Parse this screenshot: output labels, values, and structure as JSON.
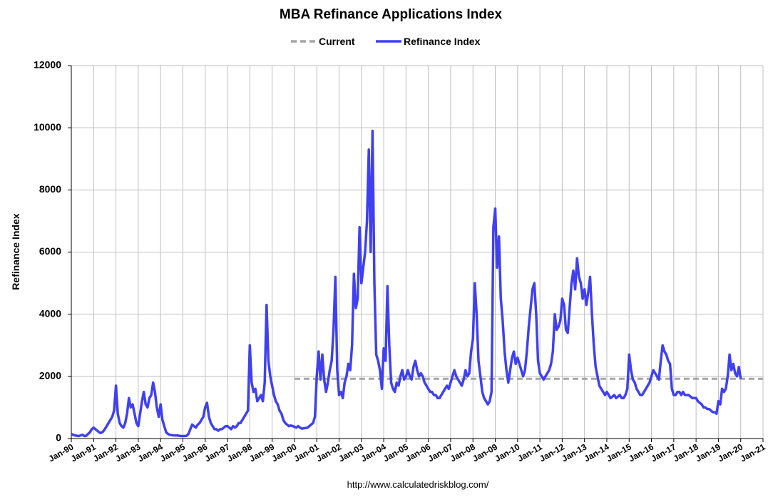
{
  "chart_data": {
    "type": "line",
    "title": "MBA Refinance Applications Index",
    "y_label": "Refinance Index",
    "source": "http://www.calculatedriskblog.com/",
    "legend": "top",
    "grid": true,
    "ylim": [
      0,
      12000
    ],
    "yticks": [
      0,
      2000,
      4000,
      6000,
      8000,
      10000,
      12000
    ],
    "xlim": [
      "1990-01",
      "2021-01"
    ],
    "xticks": [
      {
        "value": "1990-01",
        "label": "Jan-90"
      },
      {
        "value": "1991-01",
        "label": "Jan-91"
      },
      {
        "value": "1992-01",
        "label": "Jan-92"
      },
      {
        "value": "1993-01",
        "label": "Jan-93"
      },
      {
        "value": "1994-01",
        "label": "Jan-94"
      },
      {
        "value": "1995-01",
        "label": "Jan-95"
      },
      {
        "value": "1996-01",
        "label": "Jan-96"
      },
      {
        "value": "1997-01",
        "label": "Jan-97"
      },
      {
        "value": "1998-01",
        "label": "Jan-98"
      },
      {
        "value": "1999-01",
        "label": "Jan-99"
      },
      {
        "value": "2000-01",
        "label": "Jan-00"
      },
      {
        "value": "2001-01",
        "label": "Jan-01"
      },
      {
        "value": "2002-01",
        "label": "Jan-02"
      },
      {
        "value": "2003-01",
        "label": "Jan-03"
      },
      {
        "value": "2004-01",
        "label": "Jan-04"
      },
      {
        "value": "2005-01",
        "label": "Jan-05"
      },
      {
        "value": "2006-01",
        "label": "Jan-06"
      },
      {
        "value": "2007-01",
        "label": "Jan-07"
      },
      {
        "value": "2008-01",
        "label": "Jan-08"
      },
      {
        "value": "2009-01",
        "label": "Jan-09"
      },
      {
        "value": "2010-01",
        "label": "Jan-10"
      },
      {
        "value": "2011-01",
        "label": "Jan-11"
      },
      {
        "value": "2012-01",
        "label": "Jan-12"
      },
      {
        "value": "2013-01",
        "label": "Jan-13"
      },
      {
        "value": "2014-01",
        "label": "Jan-14"
      },
      {
        "value": "2015-01",
        "label": "Jan-15"
      },
      {
        "value": "2016-01",
        "label": "Jan-16"
      },
      {
        "value": "2017-01",
        "label": "Jan-17"
      },
      {
        "value": "2018-01",
        "label": "Jan-18"
      },
      {
        "value": "2019-01",
        "label": "Jan-19"
      },
      {
        "value": "2020-01",
        "label": "Jan-20"
      },
      {
        "value": "2021-01",
        "label": "Jan-21"
      }
    ],
    "series": [
      {
        "name": "Current",
        "color": "#a6a6a6",
        "dashed": true,
        "x": [
          "2000-01",
          "2021-01"
        ],
        "values": [
          1920,
          1920
        ]
      },
      {
        "name": "Refinance Index",
        "color": "#4040f0",
        "dashed": false,
        "x": [
          "1990-01",
          "1990-02",
          "1990-03",
          "1990-04",
          "1990-05",
          "1990-06",
          "1990-07",
          "1990-08",
          "1990-09",
          "1990-10",
          "1990-11",
          "1990-12",
          "1991-01",
          "1991-02",
          "1991-03",
          "1991-04",
          "1991-05",
          "1991-06",
          "1991-07",
          "1991-08",
          "1991-09",
          "1991-10",
          "1991-11",
          "1991-12",
          "1992-01",
          "1992-02",
          "1992-03",
          "1992-04",
          "1992-05",
          "1992-06",
          "1992-07",
          "1992-08",
          "1992-09",
          "1992-10",
          "1992-11",
          "1992-12",
          "1993-01",
          "1993-02",
          "1993-03",
          "1993-04",
          "1993-05",
          "1993-06",
          "1993-07",
          "1993-08",
          "1993-09",
          "1993-10",
          "1993-11",
          "1993-12",
          "1994-01",
          "1994-02",
          "1994-03",
          "1994-04",
          "1994-05",
          "1994-06",
          "1994-07",
          "1994-08",
          "1994-09",
          "1994-10",
          "1994-11",
          "1994-12",
          "1995-01",
          "1995-02",
          "1995-03",
          "1995-04",
          "1995-05",
          "1995-06",
          "1995-07",
          "1995-08",
          "1995-09",
          "1995-10",
          "1995-11",
          "1995-12",
          "1996-01",
          "1996-02",
          "1996-03",
          "1996-04",
          "1996-05",
          "1996-06",
          "1996-07",
          "1996-08",
          "1996-09",
          "1996-10",
          "1996-11",
          "1996-12",
          "1997-01",
          "1997-02",
          "1997-03",
          "1997-04",
          "1997-05",
          "1997-06",
          "1997-07",
          "1997-08",
          "1997-09",
          "1997-10",
          "1997-11",
          "1997-12",
          "1998-01",
          "1998-02",
          "1998-03",
          "1998-04",
          "1998-05",
          "1998-06",
          "1998-07",
          "1998-08",
          "1998-09",
          "1998-10",
          "1998-11",
          "1998-12",
          "1999-01",
          "1999-02",
          "1999-03",
          "1999-04",
          "1999-05",
          "1999-06",
          "1999-07",
          "1999-08",
          "1999-09",
          "1999-10",
          "1999-11",
          "1999-12",
          "2000-01",
          "2000-02",
          "2000-03",
          "2000-04",
          "2000-05",
          "2000-06",
          "2000-07",
          "2000-08",
          "2000-09",
          "2000-10",
          "2000-11",
          "2000-12",
          "2001-01",
          "2001-02",
          "2001-03",
          "2001-04",
          "2001-05",
          "2001-06",
          "2001-07",
          "2001-08",
          "2001-09",
          "2001-10",
          "2001-11",
          "2001-12",
          "2002-01",
          "2002-02",
          "2002-03",
          "2002-04",
          "2002-05",
          "2002-06",
          "2002-07",
          "2002-08",
          "2002-09",
          "2002-10",
          "2002-11",
          "2002-12",
          "2003-01",
          "2003-02",
          "2003-03",
          "2003-04",
          "2003-05",
          "2003-06",
          "2003-07",
          "2003-08",
          "2003-09",
          "2003-10",
          "2003-11",
          "2003-12",
          "2004-01",
          "2004-02",
          "2004-03",
          "2004-04",
          "2004-05",
          "2004-06",
          "2004-07",
          "2004-08",
          "2004-09",
          "2004-10",
          "2004-11",
          "2004-12",
          "2005-01",
          "2005-02",
          "2005-03",
          "2005-04",
          "2005-05",
          "2005-06",
          "2005-07",
          "2005-08",
          "2005-09",
          "2005-10",
          "2005-11",
          "2005-12",
          "2006-01",
          "2006-02",
          "2006-03",
          "2006-04",
          "2006-05",
          "2006-06",
          "2006-07",
          "2006-08",
          "2006-09",
          "2006-10",
          "2006-11",
          "2006-12",
          "2007-01",
          "2007-02",
          "2007-03",
          "2007-04",
          "2007-05",
          "2007-06",
          "2007-07",
          "2007-08",
          "2007-09",
          "2007-10",
          "2007-11",
          "2007-12",
          "2008-01",
          "2008-02",
          "2008-03",
          "2008-04",
          "2008-05",
          "2008-06",
          "2008-07",
          "2008-08",
          "2008-09",
          "2008-10",
          "2008-11",
          "2008-12",
          "2009-01",
          "2009-02",
          "2009-03",
          "2009-04",
          "2009-05",
          "2009-06",
          "2009-07",
          "2009-08",
          "2009-09",
          "2009-10",
          "2009-11",
          "2009-12",
          "2010-01",
          "2010-02",
          "2010-03",
          "2010-04",
          "2010-05",
          "2010-06",
          "2010-07",
          "2010-08",
          "2010-09",
          "2010-10",
          "2010-11",
          "2010-12",
          "2011-01",
          "2011-02",
          "2011-03",
          "2011-04",
          "2011-05",
          "2011-06",
          "2011-07",
          "2011-08",
          "2011-09",
          "2011-10",
          "2011-11",
          "2011-12",
          "2012-01",
          "2012-02",
          "2012-03",
          "2012-04",
          "2012-05",
          "2012-06",
          "2012-07",
          "2012-08",
          "2012-09",
          "2012-10",
          "2012-11",
          "2012-12",
          "2013-01",
          "2013-02",
          "2013-03",
          "2013-04",
          "2013-05",
          "2013-06",
          "2013-07",
          "2013-08",
          "2013-09",
          "2013-10",
          "2013-11",
          "2013-12",
          "2014-01",
          "2014-02",
          "2014-03",
          "2014-04",
          "2014-05",
          "2014-06",
          "2014-07",
          "2014-08",
          "2014-09",
          "2014-10",
          "2014-11",
          "2014-12",
          "2015-01",
          "2015-02",
          "2015-03",
          "2015-04",
          "2015-05",
          "2015-06",
          "2015-07",
          "2015-08",
          "2015-09",
          "2015-10",
          "2015-11",
          "2015-12",
          "2016-01",
          "2016-02",
          "2016-03",
          "2016-04",
          "2016-05",
          "2016-06",
          "2016-07",
          "2016-08",
          "2016-09",
          "2016-10",
          "2016-11",
          "2016-12",
          "2017-01",
          "2017-02",
          "2017-03",
          "2017-04",
          "2017-05",
          "2017-06",
          "2017-07",
          "2017-08",
          "2017-09",
          "2017-10",
          "2017-11",
          "2017-12",
          "2018-01",
          "2018-02",
          "2018-03",
          "2018-04",
          "2018-05",
          "2018-06",
          "2018-07",
          "2018-08",
          "2018-09",
          "2018-10",
          "2018-11",
          "2018-12",
          "2019-01",
          "2019-02",
          "2019-03",
          "2019-04",
          "2019-05",
          "2019-06",
          "2019-07",
          "2019-08",
          "2019-09",
          "2019-10",
          "2019-11",
          "2019-12",
          "2020-01"
        ],
        "values": [
          150,
          120,
          100,
          90,
          80,
          100,
          120,
          80,
          90,
          150,
          200,
          300,
          350,
          300,
          250,
          200,
          180,
          220,
          300,
          400,
          500,
          600,
          700,
          900,
          1700,
          800,
          500,
          400,
          350,
          500,
          800,
          1300,
          1000,
          1100,
          800,
          500,
          400,
          800,
          1200,
          1500,
          1100,
          1000,
          1300,
          1400,
          1800,
          1500,
          1000,
          700,
          1100,
          600,
          400,
          200,
          150,
          120,
          110,
          100,
          100,
          100,
          90,
          80,
          80,
          80,
          90,
          150,
          300,
          450,
          400,
          350,
          450,
          500,
          600,
          700,
          1000,
          1150,
          700,
          500,
          400,
          300,
          300,
          250,
          300,
          300,
          350,
          400,
          400,
          350,
          300,
          400,
          350,
          400,
          500,
          500,
          600,
          700,
          800,
          900,
          3000,
          1800,
          1500,
          1600,
          1200,
          1300,
          1400,
          1200,
          1800,
          4300,
          2500,
          2000,
          1700,
          1400,
          1200,
          1100,
          900,
          800,
          600,
          500,
          450,
          400,
          420,
          400,
          380,
          350,
          400,
          350,
          320,
          330,
          340,
          350,
          400,
          450,
          500,
          700,
          2000,
          2800,
          1900,
          2700,
          1900,
          1500,
          1800,
          2200,
          2500,
          3500,
          5200,
          2200,
          1400,
          1500,
          1300,
          1800,
          2000,
          2400,
          2200,
          3000,
          5300,
          4200,
          4500,
          6800,
          5000,
          5500,
          6000,
          7000,
          9300,
          6000,
          9900,
          5000,
          2700,
          2500,
          2200,
          1600,
          2900,
          2500,
          4900,
          3000,
          1800,
          1600,
          1500,
          1800,
          1700,
          2000,
          2200,
          1900,
          2000,
          2200,
          2000,
          1900,
          2300,
          2500,
          2200,
          2000,
          2100,
          2000,
          1800,
          1700,
          1600,
          1500,
          1500,
          1400,
          1400,
          1300,
          1300,
          1400,
          1500,
          1600,
          1700,
          1600,
          1800,
          2000,
          2200,
          2000,
          1900,
          1800,
          1700,
          1900,
          2200,
          2000,
          2100,
          2800,
          3200,
          5000,
          4000,
          2500,
          2000,
          1500,
          1300,
          1200,
          1100,
          1200,
          1500,
          6800,
          7400,
          5500,
          6500,
          4500,
          3800,
          2800,
          2200,
          1800,
          2200,
          2600,
          2800,
          2400,
          2600,
          2400,
          2200,
          2000,
          2200,
          2800,
          3600,
          4200,
          4800,
          5000,
          4000,
          2500,
          2100,
          2000,
          1900,
          2000,
          2100,
          2200,
          2400,
          2800,
          4000,
          3500,
          3600,
          3800,
          4500,
          4300,
          3500,
          3400,
          4200,
          5000,
          5400,
          4800,
          5800,
          5200,
          5000,
          4500,
          4800,
          4300,
          4700,
          5200,
          4000,
          3000,
          2300,
          2000,
          1700,
          1600,
          1500,
          1400,
          1500,
          1400,
          1300,
          1350,
          1400,
          1300,
          1350,
          1400,
          1300,
          1300,
          1400,
          1600,
          2700,
          2200,
          1900,
          1800,
          1600,
          1500,
          1400,
          1400,
          1500,
          1600,
          1700,
          1800,
          2000,
          2200,
          2100,
          2000,
          1900,
          2500,
          3000,
          2800,
          2700,
          2500,
          2400,
          1600,
          1400,
          1400,
          1500,
          1500,
          1400,
          1500,
          1400,
          1400,
          1400,
          1350,
          1300,
          1300,
          1300,
          1200,
          1150,
          1100,
          1000,
          1000,
          950,
          950,
          900,
          850,
          850,
          800,
          1200,
          1100,
          1600,
          1500,
          1600,
          2000,
          2700,
          2200,
          2400,
          2100,
          2000,
          2300,
          1920
        ]
      }
    ]
  }
}
